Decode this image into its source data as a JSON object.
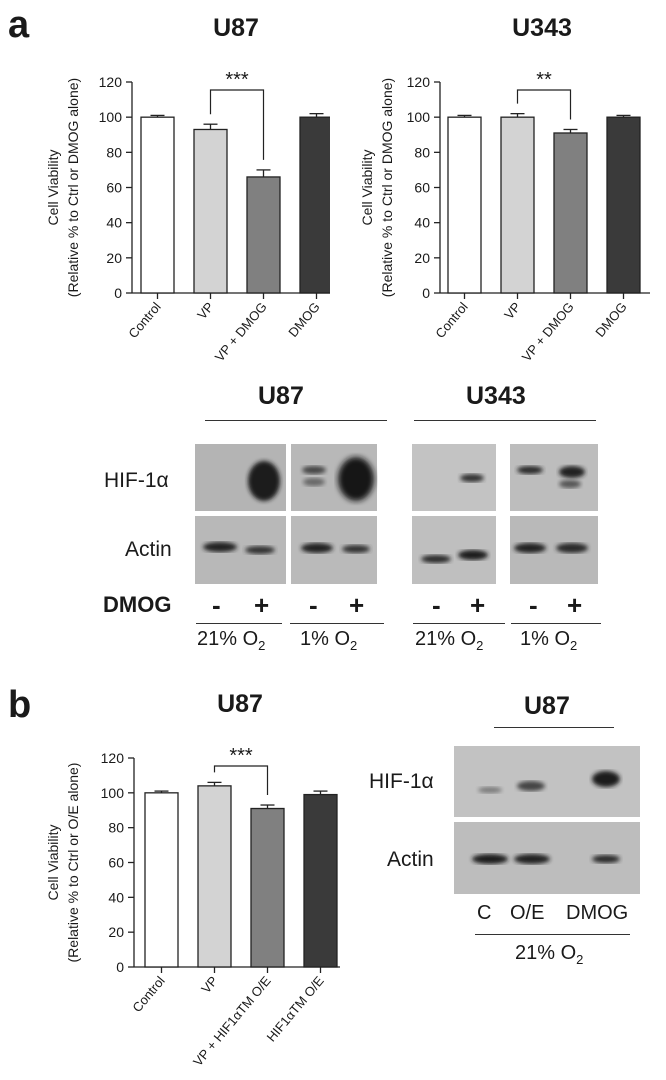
{
  "panels": {
    "a": "a",
    "b": "b"
  },
  "chart_data": [
    {
      "type": "bar",
      "title": "U87",
      "ylabel_line1": "Cell Viability",
      "ylabel_line2": "(Relative % to Ctrl or DMOG alone)",
      "categories": [
        "Control",
        "VP",
        "VP + DMOG",
        "DMOG"
      ],
      "values": [
        100,
        93,
        66,
        100
      ],
      "errors": [
        1,
        3,
        4,
        2
      ],
      "colors": [
        "#ffffff",
        "#d3d3d3",
        "#808080",
        "#3a3a3a"
      ],
      "ylim": [
        0,
        120
      ],
      "yticks": [
        0,
        20,
        40,
        60,
        80,
        100,
        120
      ],
      "significance": {
        "from": 1,
        "to": 2,
        "label": "***"
      }
    },
    {
      "type": "bar",
      "title": "U343",
      "ylabel_line1": "Cell Viability",
      "ylabel_line2": "(Relative % to Ctrl or DMOG alone)",
      "categories": [
        "Control",
        "VP",
        "VP + DMOG",
        "DMOG"
      ],
      "values": [
        100,
        100,
        91,
        100
      ],
      "errors": [
        1,
        2,
        2,
        1
      ],
      "colors": [
        "#ffffff",
        "#d3d3d3",
        "#808080",
        "#3a3a3a"
      ],
      "ylim": [
        0,
        120
      ],
      "yticks": [
        0,
        20,
        40,
        60,
        80,
        100,
        120
      ],
      "significance": {
        "from": 1,
        "to": 2,
        "label": "**"
      }
    },
    {
      "type": "bar",
      "title": "U87",
      "ylabel_line1": "Cell Viability",
      "ylabel_line2": "(Relative % to Ctrl or O/E alone)",
      "categories": [
        "Control",
        "VP",
        "VP + HIF1αTM O/E",
        "HIF1αTM O/E"
      ],
      "values": [
        100,
        104,
        91,
        99
      ],
      "errors": [
        1,
        2,
        2,
        2
      ],
      "colors": [
        "#ffffff",
        "#d3d3d3",
        "#808080",
        "#3a3a3a"
      ],
      "ylim": [
        0,
        120
      ],
      "yticks": [
        0,
        20,
        40,
        60,
        80,
        100,
        120
      ],
      "significance": {
        "from": 1,
        "to": 2,
        "label": "***"
      }
    }
  ],
  "blot_a": {
    "group_u87": "U87",
    "group_u343": "U343",
    "row_hif": "HIF-1α",
    "row_actin": "Actin",
    "treatment": "DMOG",
    "minus": "-",
    "plus": "+",
    "cond_21": "21% O",
    "cond_1": "1% O",
    "subscript": "2"
  },
  "blot_b": {
    "title": "U87",
    "row_hif": "HIF-1α",
    "row_actin": "Actin",
    "lane_c": "C",
    "lane_oe": "O/E",
    "lane_dmog": "DMOG",
    "cond": "21% O",
    "subscript": "2"
  }
}
